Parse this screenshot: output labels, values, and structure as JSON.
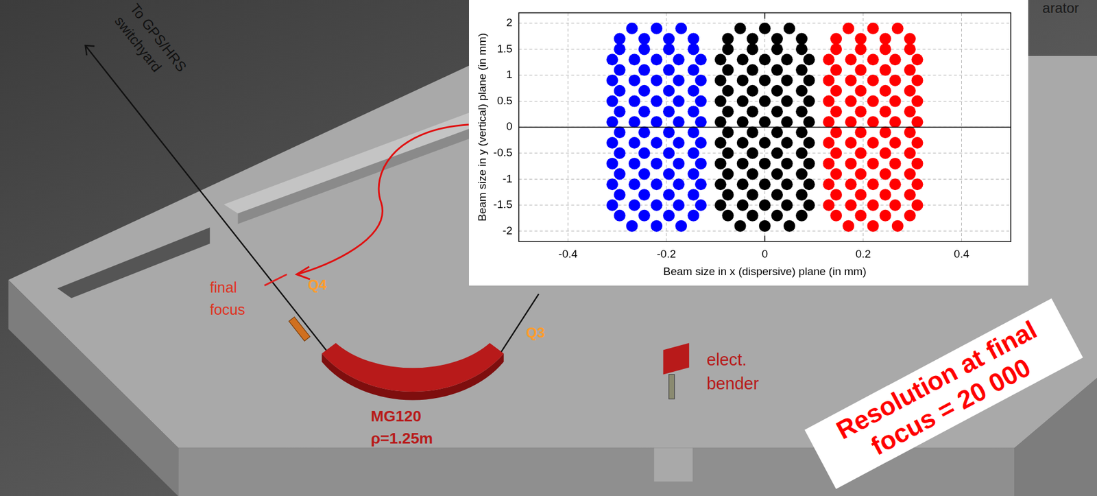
{
  "diagram": {
    "arrow_label": [
      "To GPS/HRS",
      "switchyard"
    ],
    "final_focus": [
      "final",
      "focus"
    ],
    "quadrupoles": [
      "Q4",
      "Q3"
    ],
    "dipole": [
      "MG120",
      "ρ=1.25m"
    ],
    "bender": [
      "elect.",
      "bender"
    ],
    "separator_fragment": "arator"
  },
  "banner": [
    "Resolution at final",
    "focus = 20 000"
  ],
  "chart_data": {
    "type": "scatter",
    "x_label": "Beam size in x (dispersive) plane (in mm)",
    "y_label": "Beam size in y (vertical) plane (in mm)",
    "xlim": [
      -0.5,
      0.5
    ],
    "ylim": [
      -2.2,
      2.2
    ],
    "xticks": [
      -0.4,
      -0.2,
      0,
      0.2,
      0.4
    ],
    "yticks": [
      -2,
      -1.5,
      -1,
      -0.5,
      0,
      0.5,
      1,
      1.5,
      2
    ],
    "grid": true,
    "series": [
      {
        "color": "#0000ff",
        "marker": "circle",
        "x": [
          -0.27,
          -0.22,
          -0.17,
          -0.295,
          -0.245,
          -0.195,
          -0.145,
          -0.31,
          -0.265,
          -0.22,
          -0.175,
          -0.13,
          -0.295,
          -0.245,
          -0.195,
          -0.145,
          -0.31,
          -0.265,
          -0.22,
          -0.175,
          -0.13,
          -0.295,
          -0.245,
          -0.195,
          -0.145,
          -0.31,
          -0.265,
          -0.22,
          -0.175,
          -0.13,
          -0.295,
          -0.245,
          -0.195,
          -0.145,
          -0.31,
          -0.265,
          -0.22,
          -0.175,
          -0.13,
          -0.295,
          -0.245,
          -0.195,
          -0.145,
          -0.31,
          -0.265,
          -0.22,
          -0.175,
          -0.13,
          -0.295,
          -0.245,
          -0.195,
          -0.145,
          -0.31,
          -0.265,
          -0.22,
          -0.175,
          -0.13,
          -0.295,
          -0.245,
          -0.195,
          -0.145,
          -0.31,
          -0.265,
          -0.22,
          -0.175,
          -0.13,
          -0.295,
          -0.245,
          -0.195,
          -0.145,
          -0.31,
          -0.265,
          -0.22,
          -0.175,
          -0.13,
          -0.295,
          -0.245,
          -0.195,
          -0.145,
          -0.295,
          -0.245,
          -0.195,
          -0.145,
          -0.27,
          -0.22,
          -0.17
        ],
        "values": [
          -1.9,
          -1.9,
          -1.9,
          -1.7,
          -1.7,
          -1.7,
          -1.7,
          -1.5,
          -1.5,
          -1.5,
          -1.5,
          -1.5,
          -1.3,
          -1.3,
          -1.3,
          -1.3,
          -1.1,
          -1.1,
          -1.1,
          -1.1,
          -1.1,
          -0.9,
          -0.9,
          -0.9,
          -0.9,
          -0.7,
          -0.7,
          -0.7,
          -0.7,
          -0.7,
          -0.5,
          -0.5,
          -0.5,
          -0.5,
          -0.3,
          -0.3,
          -0.3,
          -0.3,
          -0.3,
          -0.1,
          -0.1,
          -0.1,
          -0.1,
          0.1,
          0.1,
          0.1,
          0.1,
          0.1,
          0.3,
          0.3,
          0.3,
          0.3,
          0.5,
          0.5,
          0.5,
          0.5,
          0.5,
          0.7,
          0.7,
          0.7,
          0.7,
          0.9,
          0.9,
          0.9,
          0.9,
          0.9,
          1.1,
          1.1,
          1.1,
          1.1,
          1.3,
          1.3,
          1.3,
          1.3,
          1.3,
          1.5,
          1.5,
          1.5,
          1.5,
          1.7,
          1.7,
          1.7,
          1.7,
          1.9,
          1.9,
          1.9
        ]
      },
      {
        "color": "#000000",
        "marker": "circle",
        "x": [
          -0.05,
          0,
          0.05,
          -0.075,
          -0.025,
          0.025,
          0.075,
          -0.09,
          -0.045,
          0,
          0.045,
          0.09,
          -0.075,
          -0.025,
          0.025,
          0.075,
          -0.09,
          -0.045,
          0,
          0.045,
          0.09,
          -0.075,
          -0.025,
          0.025,
          0.075,
          -0.09,
          -0.045,
          0,
          0.045,
          0.09,
          -0.075,
          -0.025,
          0.025,
          0.075,
          -0.09,
          -0.045,
          0,
          0.045,
          0.09,
          -0.075,
          -0.025,
          0.025,
          0.075,
          -0.09,
          -0.045,
          0,
          0.045,
          0.09,
          -0.075,
          -0.025,
          0.025,
          0.075,
          -0.09,
          -0.045,
          0,
          0.045,
          0.09,
          -0.075,
          -0.025,
          0.025,
          0.075,
          -0.09,
          -0.045,
          0,
          0.045,
          0.09,
          -0.075,
          -0.025,
          0.025,
          0.075,
          -0.09,
          -0.045,
          0,
          0.045,
          0.09,
          -0.075,
          -0.025,
          0.025,
          0.075,
          -0.075,
          -0.025,
          0.025,
          0.075,
          -0.05,
          0,
          0.05
        ],
        "values": [
          -1.9,
          -1.9,
          -1.9,
          -1.7,
          -1.7,
          -1.7,
          -1.7,
          -1.5,
          -1.5,
          -1.5,
          -1.5,
          -1.5,
          -1.3,
          -1.3,
          -1.3,
          -1.3,
          -1.1,
          -1.1,
          -1.1,
          -1.1,
          -1.1,
          -0.9,
          -0.9,
          -0.9,
          -0.9,
          -0.7,
          -0.7,
          -0.7,
          -0.7,
          -0.7,
          -0.5,
          -0.5,
          -0.5,
          -0.5,
          -0.3,
          -0.3,
          -0.3,
          -0.3,
          -0.3,
          -0.1,
          -0.1,
          -0.1,
          -0.1,
          0.1,
          0.1,
          0.1,
          0.1,
          0.1,
          0.3,
          0.3,
          0.3,
          0.3,
          0.5,
          0.5,
          0.5,
          0.5,
          0.5,
          0.7,
          0.7,
          0.7,
          0.7,
          0.9,
          0.9,
          0.9,
          0.9,
          0.9,
          1.1,
          1.1,
          1.1,
          1.1,
          1.3,
          1.3,
          1.3,
          1.3,
          1.3,
          1.5,
          1.5,
          1.5,
          1.5,
          1.7,
          1.7,
          1.7,
          1.7,
          1.9,
          1.9,
          1.9
        ]
      },
      {
        "color": "#ff0000",
        "marker": "circle",
        "x": [
          0.17,
          0.22,
          0.27,
          0.145,
          0.195,
          0.245,
          0.295,
          0.13,
          0.175,
          0.22,
          0.265,
          0.31,
          0.145,
          0.195,
          0.245,
          0.295,
          0.13,
          0.175,
          0.22,
          0.265,
          0.31,
          0.145,
          0.195,
          0.245,
          0.295,
          0.13,
          0.175,
          0.22,
          0.265,
          0.31,
          0.145,
          0.195,
          0.245,
          0.295,
          0.13,
          0.175,
          0.22,
          0.265,
          0.31,
          0.145,
          0.195,
          0.245,
          0.295,
          0.13,
          0.175,
          0.22,
          0.265,
          0.31,
          0.145,
          0.195,
          0.245,
          0.295,
          0.13,
          0.175,
          0.22,
          0.265,
          0.31,
          0.145,
          0.195,
          0.245,
          0.295,
          0.13,
          0.175,
          0.22,
          0.265,
          0.31,
          0.145,
          0.195,
          0.245,
          0.295,
          0.13,
          0.175,
          0.22,
          0.265,
          0.31,
          0.145,
          0.195,
          0.245,
          0.295,
          0.145,
          0.195,
          0.245,
          0.295,
          0.17,
          0.22,
          0.27
        ],
        "values": [
          -1.9,
          -1.9,
          -1.9,
          -1.7,
          -1.7,
          -1.7,
          -1.7,
          -1.5,
          -1.5,
          -1.5,
          -1.5,
          -1.5,
          -1.3,
          -1.3,
          -1.3,
          -1.3,
          -1.1,
          -1.1,
          -1.1,
          -1.1,
          -1.1,
          -0.9,
          -0.9,
          -0.9,
          -0.9,
          -0.7,
          -0.7,
          -0.7,
          -0.7,
          -0.7,
          -0.5,
          -0.5,
          -0.5,
          -0.5,
          -0.3,
          -0.3,
          -0.3,
          -0.3,
          -0.3,
          -0.1,
          -0.1,
          -0.1,
          -0.1,
          0.1,
          0.1,
          0.1,
          0.1,
          0.1,
          0.3,
          0.3,
          0.3,
          0.3,
          0.5,
          0.5,
          0.5,
          0.5,
          0.5,
          0.7,
          0.7,
          0.7,
          0.7,
          0.9,
          0.9,
          0.9,
          0.9,
          0.9,
          1.1,
          1.1,
          1.1,
          1.1,
          1.3,
          1.3,
          1.3,
          1.3,
          1.3,
          1.5,
          1.5,
          1.5,
          1.5,
          1.7,
          1.7,
          1.7,
          1.7,
          1.9,
          1.9,
          1.9
        ]
      }
    ]
  }
}
